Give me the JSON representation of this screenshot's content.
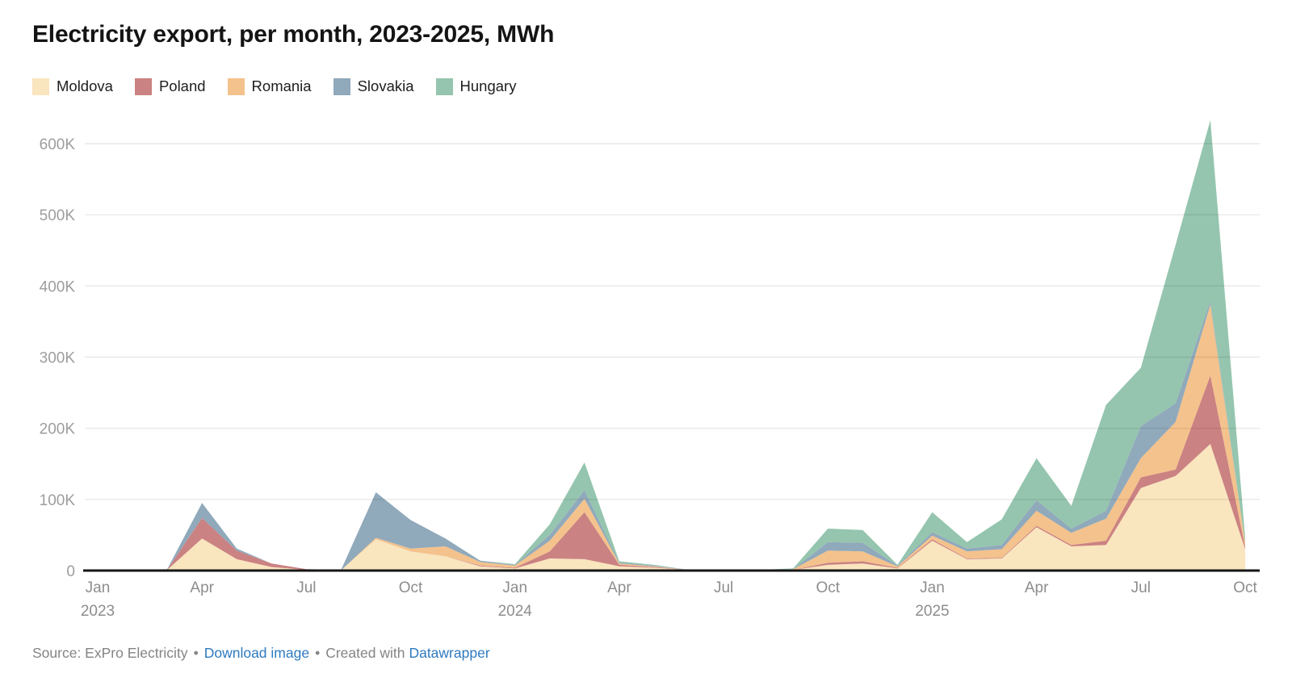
{
  "header": {
    "title": "Electricity export, per month, 2023-2025, MWh"
  },
  "footer": {
    "source": "Source: ExPro Electricity",
    "separator": "•",
    "download_label": "Download image",
    "created_with": "Created with",
    "datawrapper_label": "Datawrapper",
    "link_color": "#2f7abf"
  },
  "chart_data": {
    "type": "area",
    "stacked": true,
    "title": "Electricity export, per month, 2023-2025, MWh",
    "unit": "MWh",
    "xlabel": "",
    "ylabel": "MWh",
    "ylim": [
      0,
      600000
    ],
    "grid": "horizontal",
    "legend_position": "top",
    "x": [
      "Jan 2023",
      "Feb 2023",
      "Mar 2023",
      "Apr 2023",
      "May 2023",
      "Jun 2023",
      "Jul 2023",
      "Aug 2023",
      "Sep 2023",
      "Oct 2023",
      "Nov 2023",
      "Dec 2023",
      "Jan 2024",
      "Feb 2024",
      "Mar 2024",
      "Apr 2024",
      "May 2024",
      "Jun 2024",
      "Jul 2024",
      "Aug 2024",
      "Sep 2024",
      "Oct 2024",
      "Nov 2024",
      "Dec 2024",
      "Jan 2025",
      "Feb 2025",
      "Mar 2025",
      "Apr 2025",
      "May 2025",
      "Jun 2025",
      "Jul 2025",
      "Aug 2025",
      "Sep 2025",
      "Oct 2025"
    ],
    "series": [
      {
        "name": "Moldova",
        "color": "#F9E5BE",
        "values": [
          0,
          0,
          1000,
          45000,
          16000,
          5000,
          1000,
          500,
          44000,
          27000,
          20000,
          6000,
          3000,
          17000,
          16000,
          6000,
          4000,
          1000,
          0,
          0,
          1000,
          8000,
          10000,
          3000,
          42000,
          16000,
          17000,
          61000,
          34000,
          36000,
          116000,
          133000,
          178000,
          30000
        ]
      },
      {
        "name": "Poland",
        "color": "#CB8282",
        "values": [
          0,
          0,
          500,
          29000,
          12000,
          5000,
          1000,
          0,
          0,
          0,
          0,
          1000,
          1000,
          10000,
          66000,
          2000,
          1000,
          0,
          0,
          0,
          0,
          3000,
          3000,
          1000,
          2000,
          1000,
          1000,
          2000,
          2000,
          6000,
          15000,
          9000,
          96000,
          3000
        ]
      },
      {
        "name": "Romania",
        "color": "#F4C28C",
        "values": [
          0,
          0,
          0,
          0,
          0,
          0,
          0,
          0,
          2000,
          4000,
          14000,
          5000,
          3000,
          15000,
          19000,
          2000,
          1000,
          0,
          0,
          500,
          1000,
          17000,
          14000,
          2000,
          5000,
          10000,
          12000,
          21000,
          17000,
          31000,
          27000,
          67000,
          100000,
          6000
        ]
      },
      {
        "name": "Slovakia",
        "color": "#90A9BB",
        "values": [
          0,
          0,
          500,
          21000,
          3000,
          0,
          0,
          500,
          64000,
          40000,
          11000,
          2000,
          1000,
          8000,
          12000,
          1000,
          1000,
          0,
          0,
          0,
          0,
          12000,
          12000,
          1000,
          5000,
          4000,
          6000,
          15000,
          6000,
          11000,
          45000,
          26000,
          5000,
          1000
        ]
      },
      {
        "name": "Hungary",
        "color": "#95C5AE",
        "values": [
          0,
          0,
          0,
          0,
          0,
          0,
          0,
          0,
          0,
          0,
          0,
          0,
          1000,
          15000,
          39000,
          2000,
          1000,
          0,
          0,
          500,
          1000,
          19000,
          18000,
          1000,
          28000,
          9000,
          36000,
          59000,
          32000,
          149000,
          82000,
          223000,
          254000,
          6000
        ]
      }
    ],
    "yticks": [
      {
        "v": 0,
        "label": "0"
      },
      {
        "v": 100000,
        "label": "100K"
      },
      {
        "v": 200000,
        "label": "200K"
      },
      {
        "v": 300000,
        "label": "300K"
      },
      {
        "v": 400000,
        "label": "400K"
      },
      {
        "v": 500000,
        "label": "500K"
      },
      {
        "v": 600000,
        "label": "600K"
      }
    ],
    "xticks": [
      {
        "i": 0,
        "month": "Jan",
        "year": "2023"
      },
      {
        "i": 3,
        "month": "Apr"
      },
      {
        "i": 6,
        "month": "Jul"
      },
      {
        "i": 9,
        "month": "Oct"
      },
      {
        "i": 12,
        "month": "Jan",
        "year": "2024"
      },
      {
        "i": 15,
        "month": "Apr"
      },
      {
        "i": 18,
        "month": "Jul"
      },
      {
        "i": 21,
        "month": "Oct"
      },
      {
        "i": 24,
        "month": "Jan",
        "year": "2025"
      },
      {
        "i": 27,
        "month": "Apr"
      },
      {
        "i": 30,
        "month": "Jul"
      },
      {
        "i": 33,
        "month": "Oct"
      }
    ]
  }
}
